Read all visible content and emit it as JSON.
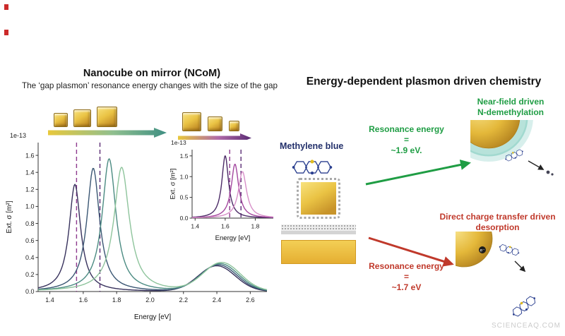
{
  "page": {
    "watermark": "SCIENCEAQ.COM"
  },
  "left_panel": {
    "title": "Nanocube on mirror (NCoM)",
    "subtitle": "The ‘gap plasmon’ resonance energy changes with the size of the gap"
  },
  "right_panel": {
    "title": "Energy-dependent plasmon driven chemistry",
    "molecule_label": "Methylene blue",
    "green": {
      "color": "#1f9d44",
      "line1": "Resonance energy",
      "line2": "=",
      "line3": "~1.9 eV.",
      "outcome_line1": "Near-field driven",
      "outcome_line2": "N-demethylation"
    },
    "red": {
      "color": "#c0392b",
      "line1": "Resonance energy",
      "line2": "=",
      "line3": "~1.7 eV",
      "outcome_line1": "Direct charge transfer driven",
      "outcome_line2": "desorption"
    }
  },
  "icons": {
    "gold_nanocube": "gold-gradient-square",
    "gap_gradient_arrow_main": "yellow-to-teal-right-arrow",
    "gap_gradient_arrow_inset": "yellow-to-purple-right-arrow",
    "molecule": "fused-hexagon-rings-with-sulfur-dot",
    "gold_mirror": "gold-slab-with-spacer-layers"
  },
  "chart_data": [
    {
      "type": "line",
      "name": "ncom-gap-plasmon-extinction-spectra",
      "scale_label": "1e-13",
      "xlabel": "Energy [eV]",
      "ylabel": "Ext. σ [m²]",
      "xlim": [
        1.33,
        2.7
      ],
      "ylim": [
        0,
        1.75
      ],
      "xticks": [
        1.4,
        1.6,
        1.8,
        2.0,
        2.2,
        2.4,
        2.6
      ],
      "yticks": [
        0.0,
        0.2,
        0.4,
        0.6,
        0.8,
        1.0,
        1.2,
        1.4,
        1.6
      ],
      "grid": false,
      "legend": false,
      "dashed_markers": [
        {
          "x": 1.56,
          "color": "#8e3a8e"
        },
        {
          "x": 1.7,
          "color": "#5b2c74"
        }
      ],
      "series": [
        {
          "name": "series1",
          "color": "#37315c",
          "peak": {
            "x": 1.55,
            "y": 1.26,
            "hwhm": 0.042
          },
          "bump": {
            "x": 2.4,
            "y": 0.3,
            "sigma": 0.11
          }
        },
        {
          "name": "series2",
          "color": "#3a5673",
          "peak": {
            "x": 1.66,
            "y": 1.45,
            "hwhm": 0.046
          },
          "bump": {
            "x": 2.41,
            "y": 0.31,
            "sigma": 0.11
          }
        },
        {
          "name": "series3",
          "color": "#4b8b82",
          "peak": {
            "x": 1.755,
            "y": 1.56,
            "hwhm": 0.05
          },
          "bump": {
            "x": 2.42,
            "y": 0.32,
            "sigma": 0.11
          }
        },
        {
          "name": "series4",
          "color": "#8ec49c",
          "peak": {
            "x": 1.83,
            "y": 1.46,
            "hwhm": 0.056
          },
          "bump": {
            "x": 2.43,
            "y": 0.33,
            "sigma": 0.11
          }
        }
      ]
    },
    {
      "type": "line",
      "name": "inset-extinction-spectra",
      "scale_label": "1e-13",
      "xlabel": "Energy [eV]",
      "ylabel": "Ext. σ [m²]",
      "xlim": [
        1.38,
        1.92
      ],
      "ylim": [
        0,
        1.65
      ],
      "xticks": [
        1.4,
        1.6,
        1.8
      ],
      "yticks": [
        0.0,
        0.5,
        1.0,
        1.5
      ],
      "grid": false,
      "legend": false,
      "dashed_markers": [
        {
          "x": 1.63,
          "color": "#8e3a8e"
        },
        {
          "x": 1.705,
          "color": "#5b2c74"
        }
      ],
      "series": [
        {
          "name": "series1",
          "color": "#4b2a66",
          "peak": {
            "x": 1.6,
            "y": 1.5,
            "hwhm": 0.027
          }
        },
        {
          "name": "series2",
          "color": "#a3479e",
          "peak": {
            "x": 1.665,
            "y": 1.3,
            "hwhm": 0.03
          }
        },
        {
          "name": "series3",
          "color": "#d78fc8",
          "peak": {
            "x": 1.715,
            "y": 1.12,
            "hwhm": 0.033
          }
        }
      ]
    }
  ]
}
